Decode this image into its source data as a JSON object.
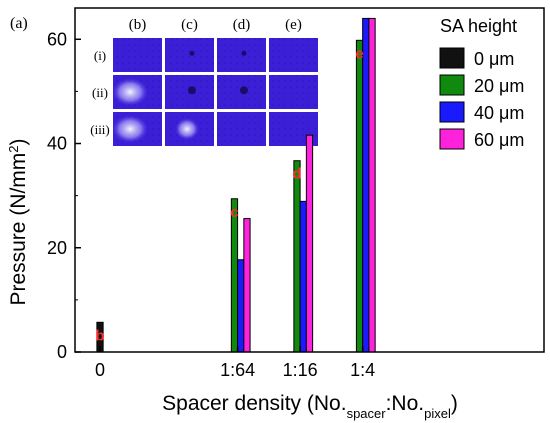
{
  "panel_label": "(a)",
  "chart_data": {
    "type": "bar",
    "categories": [
      "0",
      "1:64",
      "1:16",
      "1:4"
    ],
    "series": [
      {
        "name": "0 μm",
        "color": "#111111",
        "values": [
          5.7,
          null,
          null,
          null
        ]
      },
      {
        "name": "20 μm",
        "color": "#0f8a0f",
        "values": [
          null,
          29.4,
          36.7,
          59.8
        ]
      },
      {
        "name": "40 μm",
        "color": "#1a1aff",
        "values": [
          null,
          17.7,
          28.9,
          64.0
        ]
      },
      {
        "name": "60 μm",
        "color": "#ff22dd",
        "values": [
          null,
          25.6,
          41.6,
          64.0
        ]
      }
    ],
    "ylim": [
      0,
      66
    ],
    "yticks": [
      0,
      20,
      40,
      60
    ],
    "xlabel_main": "Spacer density (No.",
    "xlabel_sub1": "spacer",
    "xlabel_mid": ":No.",
    "xlabel_sub2": "pixel",
    "xlabel_end": ")",
    "ylabel_main": "Pressure (N/mm",
    "ylabel_sup": "2",
    "ylabel_end": ")",
    "legend_title": "SA height",
    "legend_position": "top-right",
    "bar_annotations": [
      {
        "text": "b",
        "category": "0",
        "series": "0 μm",
        "color": "#ff2a2a"
      },
      {
        "text": "c",
        "category": "1:64",
        "series": "20 μm",
        "color": "#ff2a2a"
      },
      {
        "text": "d",
        "category": "1:16",
        "series": "20 μm",
        "color": "#ff2a2a"
      },
      {
        "text": "e",
        "category": "1:4",
        "series": "20 μm",
        "color": "#ff2a2a"
      }
    ]
  },
  "inset": {
    "column_labels": [
      "(b)",
      "(c)",
      "(d)",
      "(e)"
    ],
    "row_labels": [
      "(i)",
      "(ii)",
      "(iii)"
    ],
    "tile_color": "#3b1fd6"
  }
}
